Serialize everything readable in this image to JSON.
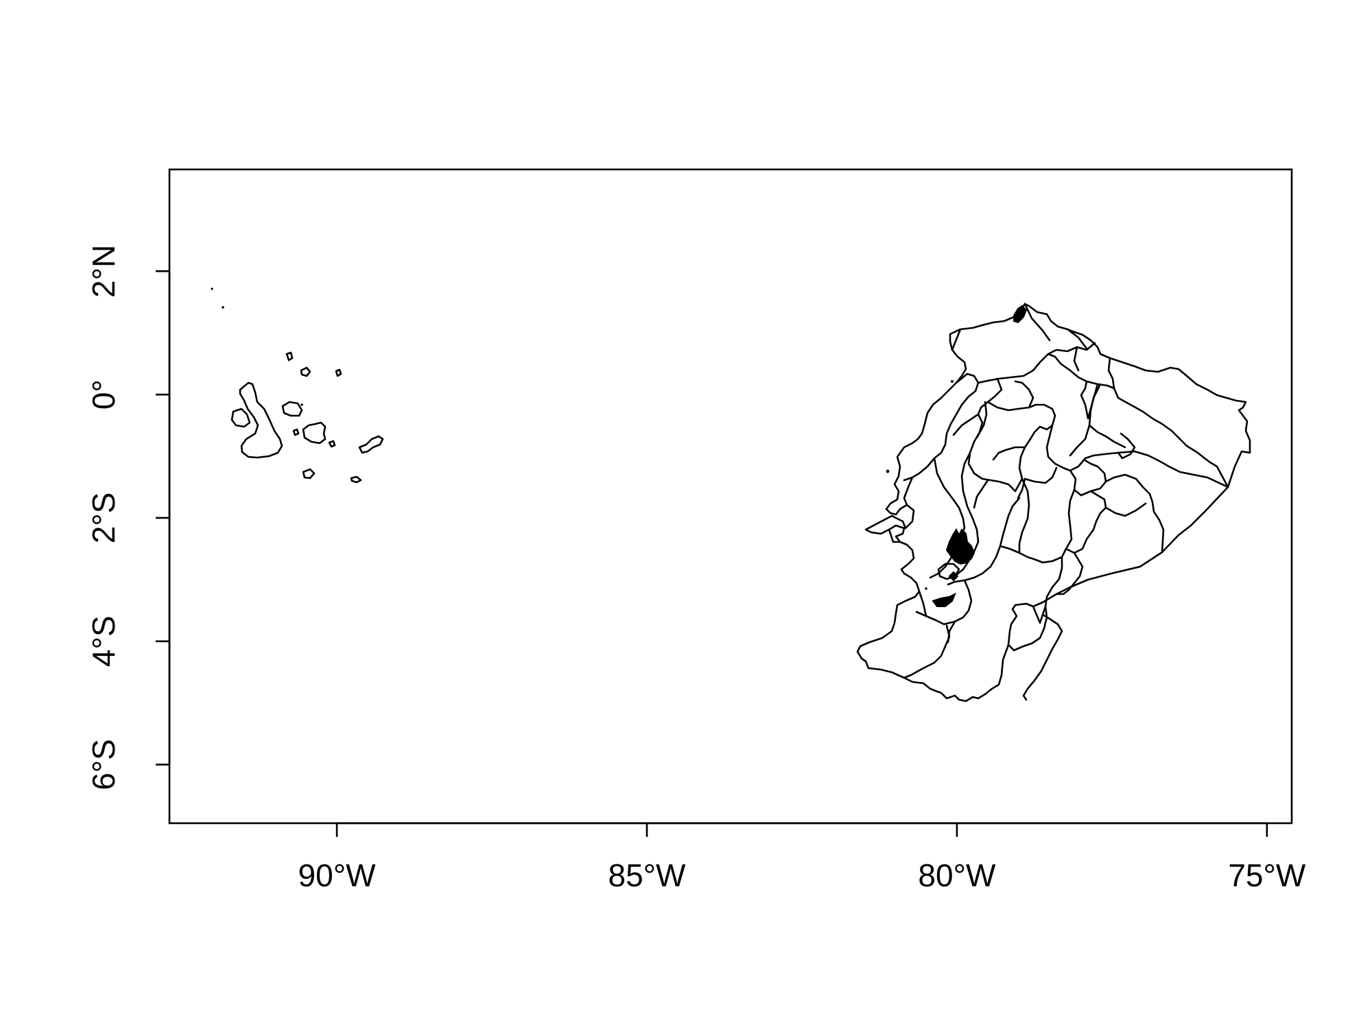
{
  "map": {
    "type": "choropleth-outline",
    "title": "",
    "xlabel": "",
    "ylabel": "",
    "xlim_degrees": [
      -92.7,
      -74.6
    ],
    "ylim_degrees": [
      -6.95,
      3.65
    ],
    "x_ticks": [
      {
        "value": -90,
        "label": "90°W"
      },
      {
        "value": -85,
        "label": "85°W"
      },
      {
        "value": -80,
        "label": "80°W"
      },
      {
        "value": -75,
        "label": "75°W"
      }
    ],
    "y_ticks": [
      {
        "value": 2,
        "label": "2°N"
      },
      {
        "value": 0,
        "label": "0°"
      },
      {
        "value": -2,
        "label": "2°S"
      },
      {
        "value": -4,
        "label": "4°S"
      },
      {
        "value": -6,
        "label": "6°S"
      }
    ],
    "grid": false,
    "colors": {
      "outline": "#000000",
      "background": "#ffffff"
    }
  }
}
